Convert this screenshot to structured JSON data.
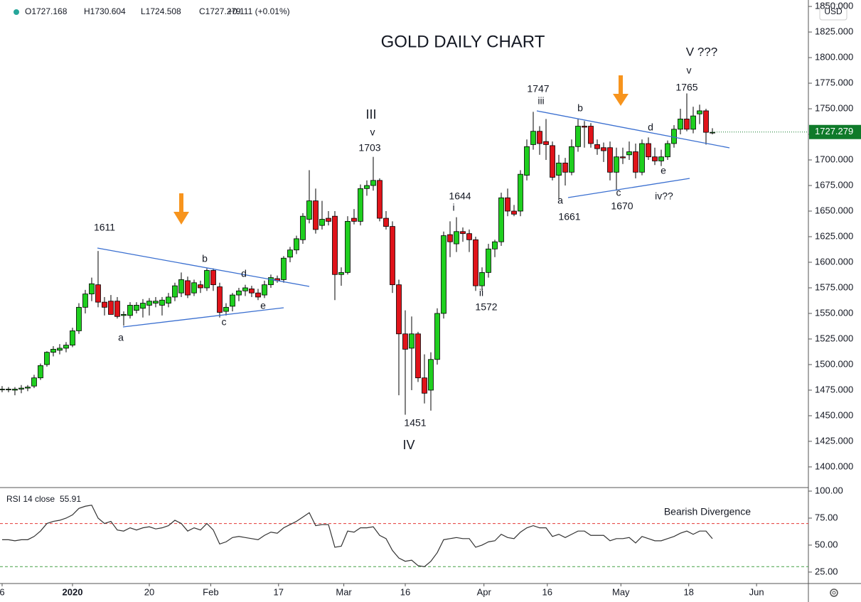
{
  "header": {
    "ohlc": [
      "O1727.168",
      "H1730.604",
      "L1724.508",
      "C1727.279",
      "+0.111 (+0.01%)"
    ],
    "currency": "USD"
  },
  "chart_data": [
    {
      "type": "candlestick",
      "title": "GOLD DAILY CHART",
      "up_color": "#1fcf1f",
      "down_color": "#e0131a",
      "x": [
        0,
        1,
        2,
        3,
        4,
        5,
        6,
        7,
        8,
        9,
        10,
        11,
        12,
        13,
        14,
        15,
        16,
        17,
        18,
        19,
        20,
        21,
        22,
        23,
        24,
        25,
        26,
        27,
        28,
        29,
        30,
        31,
        32,
        33,
        34,
        35,
        36,
        37,
        38,
        39,
        40,
        41,
        42,
        43,
        44,
        45,
        46,
        47,
        48,
        49,
        50,
        51,
        52,
        53,
        54,
        55,
        56,
        57,
        58,
        59,
        60,
        61,
        62,
        63,
        64,
        65,
        66,
        67,
        68,
        69,
        70,
        71,
        72,
        73,
        74,
        75,
        76,
        77,
        78,
        79,
        80,
        81,
        82,
        83,
        84,
        85,
        86,
        87,
        88,
        89,
        90,
        91,
        92,
        93,
        94,
        95,
        96,
        97,
        98,
        99,
        100,
        101,
        102,
        103,
        104,
        105,
        106,
        107,
        108,
        109,
        110,
        111
      ],
      "open": [
        1476,
        1476,
        1475,
        1476,
        1477,
        1479,
        1487,
        1500,
        1512,
        1514,
        1516,
        1519,
        1533,
        1556,
        1569,
        1578,
        1561,
        1562,
        1562,
        1548,
        1548,
        1553,
        1555,
        1558,
        1560,
        1558,
        1560,
        1566,
        1570,
        1582,
        1570,
        1578,
        1575,
        1592,
        1576,
        1552,
        1557,
        1568,
        1572,
        1574,
        1570,
        1568,
        1578,
        1584,
        1583,
        1605,
        1612,
        1622,
        1642,
        1660,
        1636,
        1643,
        1645,
        1588,
        1590,
        1643,
        1640,
        1672,
        1675,
        1680,
        1643,
        1635,
        1578,
        1530,
        1516,
        1530,
        1487,
        1475,
        1505,
        1550,
        1627,
        1618,
        1630,
        1628,
        1622,
        1577,
        1590,
        1613,
        1620,
        1663,
        1650,
        1650,
        1685,
        1715,
        1728,
        1718,
        1714,
        1685,
        1697,
        1688,
        1713,
        1733,
        1733,
        1715,
        1712,
        1712,
        1688,
        1703,
        1705,
        1708,
        1688,
        1716,
        1703,
        1699,
        1703,
        1716,
        1730,
        1740,
        1730,
        1745,
        1748,
        1727
      ],
      "high": [
        1479,
        1478,
        1478,
        1480,
        1480,
        1490,
        1501,
        1513,
        1518,
        1520,
        1522,
        1536,
        1560,
        1573,
        1585,
        1611,
        1566,
        1568,
        1566,
        1552,
        1561,
        1561,
        1564,
        1565,
        1566,
        1566,
        1570,
        1580,
        1590,
        1586,
        1583,
        1582,
        1594,
        1594,
        1580,
        1560,
        1570,
        1575,
        1578,
        1577,
        1574,
        1582,
        1588,
        1587,
        1606,
        1615,
        1626,
        1648,
        1690,
        1672,
        1660,
        1650,
        1650,
        1595,
        1645,
        1652,
        1676,
        1680,
        1703,
        1682,
        1650,
        1640,
        1583,
        1553,
        1547,
        1532,
        1510,
        1512,
        1555,
        1630,
        1640,
        1644,
        1634,
        1632,
        1625,
        1595,
        1618,
        1622,
        1668,
        1672,
        1656,
        1690,
        1720,
        1747,
        1733,
        1740,
        1718,
        1705,
        1702,
        1720,
        1740,
        1738,
        1736,
        1720,
        1717,
        1718,
        1712,
        1712,
        1718,
        1716,
        1720,
        1722,
        1712,
        1710,
        1719,
        1734,
        1750,
        1765,
        1752,
        1754,
        1750,
        1731
      ],
      "low": [
        1473,
        1473,
        1470,
        1472,
        1474,
        1477,
        1485,
        1498,
        1508,
        1510,
        1512,
        1517,
        1530,
        1550,
        1562,
        1556,
        1548,
        1550,
        1545,
        1538,
        1545,
        1550,
        1546,
        1548,
        1556,
        1548,
        1556,
        1562,
        1566,
        1565,
        1567,
        1570,
        1572,
        1572,
        1546,
        1548,
        1552,
        1562,
        1567,
        1566,
        1563,
        1565,
        1575,
        1580,
        1580,
        1600,
        1608,
        1618,
        1638,
        1628,
        1632,
        1636,
        1563,
        1577,
        1588,
        1637,
        1636,
        1665,
        1670,
        1640,
        1632,
        1570,
        1470,
        1451,
        1475,
        1483,
        1462,
        1455,
        1500,
        1545,
        1605,
        1610,
        1620,
        1610,
        1572,
        1572,
        1585,
        1605,
        1616,
        1645,
        1645,
        1645,
        1680,
        1710,
        1705,
        1700,
        1680,
        1661,
        1675,
        1685,
        1708,
        1712,
        1712,
        1705,
        1698,
        1680,
        1670,
        1696,
        1700,
        1682,
        1685,
        1700,
        1695,
        1694,
        1700,
        1712,
        1725,
        1728,
        1726,
        1735,
        1715,
        1725
      ],
      "close": [
        1476,
        1476,
        1476,
        1477,
        1478,
        1487,
        1499,
        1512,
        1515,
        1516,
        1519,
        1533,
        1556,
        1569,
        1579,
        1561,
        1556,
        1549,
        1547,
        1549,
        1558,
        1558,
        1560,
        1562,
        1562,
        1563,
        1566,
        1577,
        1583,
        1568,
        1580,
        1575,
        1592,
        1578,
        1551,
        1556,
        1568,
        1572,
        1575,
        1570,
        1566,
        1578,
        1585,
        1582,
        1604,
        1612,
        1623,
        1645,
        1660,
        1632,
        1642,
        1640,
        1588,
        1590,
        1640,
        1640,
        1672,
        1675,
        1680,
        1643,
        1635,
        1578,
        1530,
        1515,
        1530,
        1487,
        1472,
        1505,
        1550,
        1626,
        1620,
        1630,
        1628,
        1622,
        1577,
        1590,
        1613,
        1620,
        1663,
        1650,
        1647,
        1686,
        1713,
        1728,
        1716,
        1715,
        1683,
        1697,
        1688,
        1713,
        1733,
        1732,
        1716,
        1711,
        1709,
        1688,
        1703,
        1702,
        1708,
        1688,
        1716,
        1703,
        1699,
        1703,
        1716,
        1730,
        1740,
        1730,
        1743,
        1748,
        1727,
        1727
      ],
      "xlim": [
        -0.33,
        126
      ],
      "xticks": [
        {
          "value": 0,
          "label": "6"
        },
        {
          "value": 11,
          "label": "2020"
        },
        {
          "value": 23,
          "label": "20"
        },
        {
          "value": 32.6,
          "label": "Feb"
        },
        {
          "value": 43.2,
          "label": "17"
        },
        {
          "value": 53.4,
          "label": "Mar"
        },
        {
          "value": 63,
          "label": "16"
        },
        {
          "value": 75.3,
          "label": "Apr"
        },
        {
          "value": 85.2,
          "label": "16"
        },
        {
          "value": 96.7,
          "label": "May"
        },
        {
          "value": 107.3,
          "label": "18"
        },
        {
          "value": 117.9,
          "label": "Jun"
        }
      ],
      "ylim": [
        1379.8,
        1856.3
      ],
      "yticks": [
        {
          "value": 1400,
          "label": "1400.000"
        },
        {
          "value": 1425,
          "label": "1425.000"
        },
        {
          "value": 1450,
          "label": "1450.000"
        },
        {
          "value": 1475,
          "label": "1475.000"
        },
        {
          "value": 1500,
          "label": "1500.000"
        },
        {
          "value": 1525,
          "label": "1525.000"
        },
        {
          "value": 1550,
          "label": "1550.000"
        },
        {
          "value": 1575,
          "label": "1575.000"
        },
        {
          "value": 1600,
          "label": "1600.000"
        },
        {
          "value": 1625,
          "label": "1625.000"
        },
        {
          "value": 1650,
          "label": "1650.000"
        },
        {
          "value": 1675,
          "label": "1675.000"
        },
        {
          "value": 1700,
          "label": "1700.000"
        },
        {
          "value": 1725,
          "label": "1725.000"
        },
        {
          "value": 1750,
          "label": "1750.000"
        },
        {
          "value": 1775,
          "label": "1775.000"
        },
        {
          "value": 1800,
          "label": "1800.000"
        },
        {
          "value": 1825,
          "label": "1825.000"
        },
        {
          "value": 1850,
          "label": "1850.000"
        }
      ],
      "last_price": {
        "value": 1727.279,
        "label": "1727.279",
        "color": "#0f7a2a"
      },
      "annotations": [
        "1611",
        "a",
        "b",
        "c",
        "d",
        "e",
        "III",
        "v",
        "1703",
        "1451",
        "IV",
        "1644",
        "i",
        "ii",
        "1572",
        "1747",
        "iii",
        "b",
        "a",
        "1661",
        "c",
        "1670",
        "d",
        "e",
        "iv??",
        "V ???",
        "v",
        "1765"
      ]
    },
    {
      "type": "line",
      "label": "RSI 14 close",
      "last": 55.91,
      "color": "#333333",
      "values": [
        55,
        55,
        54,
        55,
        55,
        58,
        63,
        70,
        72,
        73,
        75,
        78,
        84,
        86,
        87,
        75,
        70,
        72,
        64,
        63,
        66,
        64,
        66,
        67,
        65,
        66,
        68,
        73,
        70,
        63,
        66,
        64,
        70,
        64,
        51,
        53,
        57,
        58,
        57,
        56,
        55,
        59,
        62,
        61,
        66,
        69,
        72,
        76,
        80,
        68,
        69,
        69,
        48,
        49,
        63,
        62,
        66,
        66,
        67,
        59,
        56,
        45,
        38,
        35,
        36,
        31,
        30,
        35,
        43,
        55,
        56,
        57,
        56,
        56,
        48,
        50,
        53,
        54,
        60,
        57,
        56,
        62,
        66,
        68,
        66,
        66,
        58,
        60,
        57,
        60,
        63,
        63,
        59,
        59,
        59,
        54,
        56,
        56,
        57,
        52,
        58,
        56,
        54,
        54,
        56,
        58,
        61,
        63,
        60,
        63,
        63,
        56
      ],
      "ylim": [
        14.4,
        103.3
      ],
      "yticks": [
        {
          "value": 25,
          "label": "25.00"
        },
        {
          "value": 50,
          "label": "50.00"
        },
        {
          "value": 75,
          "label": "75.00"
        },
        {
          "value": 100,
          "label": "100.00"
        }
      ],
      "levels": [
        {
          "value": 70,
          "color": "#e53935"
        },
        {
          "value": 30,
          "color": "#43a047"
        }
      ],
      "annotation": "Bearish Divergence"
    }
  ]
}
